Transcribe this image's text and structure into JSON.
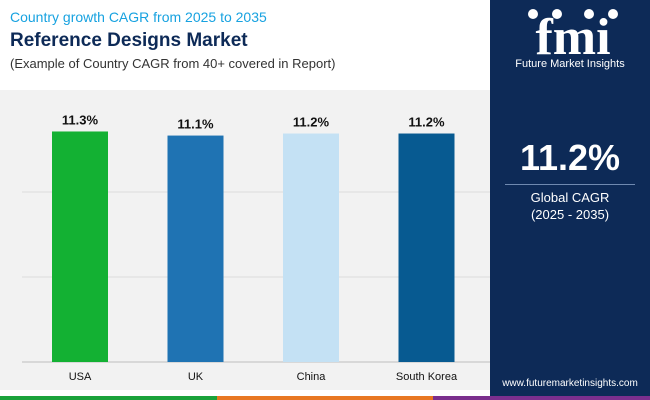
{
  "header": {
    "line1": "Country growth CAGR from 2025 to 2035",
    "title": "Reference Designs Market",
    "subtitle": "(Example of Country CAGR from 40+ covered in Report)"
  },
  "brand": {
    "logo_text": "fmi",
    "name": "Future Market Insights",
    "website": "www.futuremarketinsights.com"
  },
  "summary": {
    "value": "11.2%",
    "label": "Global CAGR",
    "period": "(2025 - 2035)"
  },
  "colors": {
    "panel": "#0d2a57",
    "footer": [
      "#1aa23a",
      "#e87722",
      "#7b2f8e"
    ]
  },
  "chart_data": {
    "type": "bar",
    "categories": [
      "USA",
      "UK",
      "China",
      "South Korea"
    ],
    "values": [
      11.3,
      11.1,
      11.2,
      11.2
    ],
    "data_labels": [
      "11.3%",
      "11.1%",
      "11.2%",
      "11.2%"
    ],
    "colors": [
      "#13b133",
      "#1f73b3",
      "#c4e1f4",
      "#075a91"
    ],
    "ylim": [
      0,
      12.5
    ],
    "grid": true
  }
}
